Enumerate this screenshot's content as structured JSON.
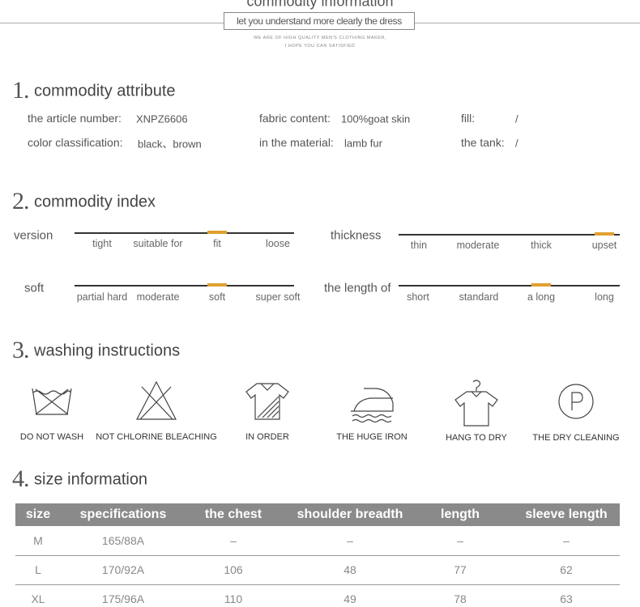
{
  "header": {
    "title": "commodity information",
    "subtitle": "let you understand more clearly the dress",
    "tagline": [
      "WE ARE OF HIGH QUALITY MEN'S CLOTHING MAKER,",
      "I HOPE YOU CAN SATISFIED"
    ]
  },
  "attribute": {
    "number": "1.",
    "title": "commodity attribute",
    "items": [
      {
        "label": "the article number:",
        "value": "XNPZ6606"
      },
      {
        "label": "fabric content:",
        "value": "100%goat skin"
      },
      {
        "label": "fill:",
        "value": "/"
      },
      {
        "label": "color classification:",
        "value": "black、brown"
      },
      {
        "label": "in the material:",
        "value": "lamb fur"
      },
      {
        "label": "the tank:",
        "value": "/"
      }
    ]
  },
  "index": {
    "number": "2.",
    "title": "commodity index",
    "scales": [
      {
        "label": "version",
        "options": [
          "tight",
          "suitable for",
          "fit",
          "loose"
        ]
      },
      {
        "label": "thickness",
        "options": [
          "thin",
          "moderate",
          "thick",
          "upset"
        ]
      },
      {
        "label": "soft",
        "options": [
          "partial hard",
          "moderate",
          "soft",
          "super soft"
        ]
      },
      {
        "label": "the length of",
        "options": [
          "short",
          "standard",
          "a long",
          "long"
        ]
      }
    ]
  },
  "washing": {
    "number": "3.",
    "title": "washing instructions",
    "items": [
      "DO NOT WASH",
      "NOT CHLORINE BLEACHING",
      "IN ORDER",
      "THE HUGE IRON",
      "HANG TO DRY",
      "THE DRY CLEANING"
    ]
  },
  "size": {
    "number": "4.",
    "title": "size information",
    "columns": [
      "size",
      "specifications",
      "the chest",
      "shoulder breadth",
      "length",
      "sleeve length"
    ],
    "rows": [
      [
        "M",
        "165/88A",
        "–",
        "–",
        "–",
        "–"
      ],
      [
        "L",
        "170/92A",
        106,
        48,
        77,
        62
      ],
      [
        "XL",
        "175/96A",
        110,
        49,
        78,
        63
      ]
    ]
  }
}
